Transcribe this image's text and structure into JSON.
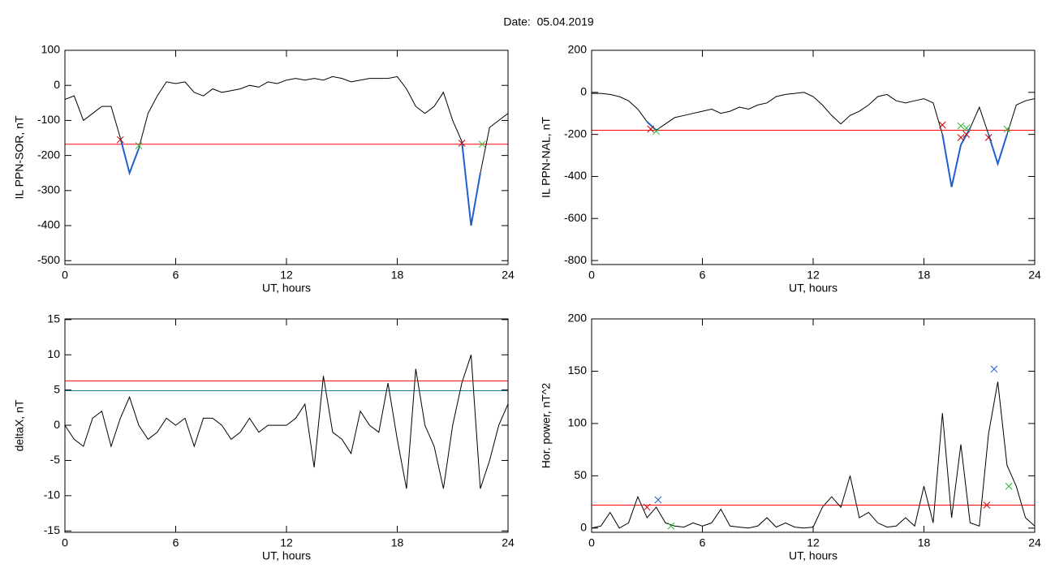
{
  "title": "Date:  05.04.2019",
  "chart_data": [
    {
      "type": "line",
      "ylabel": "IL PPN-SOR, nT",
      "xlabel": "UT, hours",
      "xlim": [
        0,
        24
      ],
      "xticks": [
        0,
        6,
        12,
        18,
        24
      ],
      "ylim": [
        -511,
        100
      ],
      "yticks": [
        100,
        0,
        -100,
        -200,
        -300,
        -400,
        -500
      ],
      "x": [
        0,
        0.5,
        1,
        1.5,
        2,
        2.5,
        3,
        3.5,
        4,
        4.5,
        5,
        5.5,
        6,
        6.5,
        7,
        7.5,
        8,
        8.5,
        9,
        9.5,
        10,
        10.5,
        11,
        11.5,
        12,
        12.5,
        13,
        13.5,
        14,
        14.5,
        15,
        15.5,
        16,
        16.5,
        17,
        17.5,
        18,
        18.5,
        19,
        19.5,
        20,
        20.5,
        21,
        21.5,
        22,
        22.5,
        23,
        23.5,
        24
      ],
      "series": [
        {
          "color": "#000000",
          "values": [
            -40,
            -30,
            -100,
            -80,
            -60,
            -60,
            -150,
            -250,
            -180,
            -80,
            -30,
            10,
            5,
            10,
            -20,
            -30,
            -10,
            -20,
            -15,
            -10,
            0,
            -5,
            10,
            5,
            15,
            20,
            15,
            20,
            15,
            25,
            20,
            10,
            15,
            20,
            20,
            20,
            25,
            -10,
            -60,
            -80,
            -60,
            -20,
            -100,
            -160,
            -400,
            -250,
            -120,
            -100,
            -80
          ]
        },
        {
          "color": "#1f5fd0",
          "values": [
            null,
            null,
            null,
            null,
            null,
            null,
            -150,
            -250,
            -180,
            null,
            null,
            null,
            null,
            null,
            null,
            null,
            null,
            null,
            null,
            null,
            null,
            null,
            null,
            null,
            null,
            null,
            null,
            null,
            null,
            null,
            null,
            null,
            null,
            null,
            null,
            null,
            null,
            null,
            null,
            null,
            null,
            null,
            null,
            -160,
            -400,
            -250,
            null,
            null,
            null
          ]
        }
      ],
      "hlines": [
        {
          "value": -168,
          "color": "#ff0000"
        }
      ],
      "markers": [
        {
          "x": 3.0,
          "y": -155,
          "color": "#cc0000"
        },
        {
          "x": 4.0,
          "y": -172,
          "color": "#2db82d"
        },
        {
          "x": 21.5,
          "y": -165,
          "color": "#cc0000"
        },
        {
          "x": 22.6,
          "y": -168,
          "color": "#2db82d"
        }
      ]
    },
    {
      "type": "line",
      "ylabel": "IL PPN-NAL, nT",
      "xlabel": "UT, hours",
      "xlim": [
        0,
        24
      ],
      "xticks": [
        0,
        6,
        12,
        18,
        24
      ],
      "ylim": [
        -819,
        200
      ],
      "yticks": [
        200,
        0,
        -200,
        -400,
        -600,
        -800
      ],
      "x": [
        0,
        0.5,
        1,
        1.5,
        2,
        2.5,
        3,
        3.5,
        4,
        4.5,
        5,
        5.5,
        6,
        6.5,
        7,
        7.5,
        8,
        8.5,
        9,
        9.5,
        10,
        10.5,
        11,
        11.5,
        12,
        12.5,
        13,
        13.5,
        14,
        14.5,
        15,
        15.5,
        16,
        16.5,
        17,
        17.5,
        18,
        18.5,
        19,
        19.5,
        20,
        20.5,
        21,
        21.5,
        22,
        22.5,
        23,
        23.5,
        24
      ],
      "series": [
        {
          "color": "#000000",
          "values": [
            -5,
            -5,
            -10,
            -20,
            -40,
            -80,
            -140,
            -180,
            -150,
            -120,
            -110,
            -100,
            -90,
            -80,
            -100,
            -90,
            -70,
            -80,
            -60,
            -50,
            -20,
            -10,
            -5,
            0,
            -20,
            -60,
            -110,
            -150,
            -110,
            -90,
            -60,
            -20,
            -10,
            -40,
            -50,
            -40,
            -30,
            -50,
            -200,
            -450,
            -250,
            -170,
            -70,
            -200,
            -340,
            -200,
            -60,
            -40,
            -30
          ]
        },
        {
          "color": "#1f5fd0",
          "values": [
            null,
            null,
            null,
            null,
            null,
            null,
            -140,
            -180,
            null,
            null,
            null,
            null,
            null,
            null,
            null,
            null,
            null,
            null,
            null,
            null,
            null,
            null,
            null,
            null,
            null,
            null,
            null,
            null,
            null,
            null,
            null,
            null,
            null,
            null,
            null,
            null,
            null,
            null,
            -200,
            -450,
            -250,
            -170,
            null,
            -200,
            -340,
            -200,
            null,
            null,
            null
          ]
        }
      ],
      "hlines": [
        {
          "value": -180,
          "color": "#ff0000"
        }
      ],
      "markers": [
        {
          "x": 3.2,
          "y": -175,
          "color": "#cc0000"
        },
        {
          "x": 3.5,
          "y": -185,
          "color": "#2db82d"
        },
        {
          "x": 19.0,
          "y": -155,
          "color": "#cc0000"
        },
        {
          "x": 20.0,
          "y": -160,
          "color": "#2db82d"
        },
        {
          "x": 20.0,
          "y": -215,
          "color": "#cc0000"
        },
        {
          "x": 20.3,
          "y": -170,
          "color": "#2db82d"
        },
        {
          "x": 20.3,
          "y": -200,
          "color": "#cc0000"
        },
        {
          "x": 21.5,
          "y": -215,
          "color": "#cc0000"
        },
        {
          "x": 22.5,
          "y": -175,
          "color": "#2db82d"
        }
      ]
    },
    {
      "type": "line",
      "ylabel": "deltaX, nT",
      "xlabel": "UT, hours",
      "xlim": [
        0,
        24
      ],
      "xticks": [
        0,
        6,
        12,
        18,
        24
      ],
      "ylim": [
        -15.2,
        15.1
      ],
      "yticks": [
        15,
        10,
        5,
        0,
        -5,
        -10,
        -15
      ],
      "x": [
        0,
        0.5,
        1,
        1.5,
        2,
        2.5,
        3,
        3.5,
        4,
        4.5,
        5,
        5.5,
        6,
        6.5,
        7,
        7.5,
        8,
        8.5,
        9,
        9.5,
        10,
        10.5,
        11,
        11.5,
        12,
        12.5,
        13,
        13.5,
        14,
        14.5,
        15,
        15.5,
        16,
        16.5,
        17,
        17.5,
        18,
        18.5,
        19,
        19.5,
        20,
        20.5,
        21,
        21.5,
        22,
        22.5,
        23,
        23.5,
        24
      ],
      "series": [
        {
          "color": "#000000",
          "values": [
            0,
            -2,
            -3,
            1,
            2,
            -3,
            1,
            4,
            0,
            -2,
            -1,
            1,
            0,
            1,
            -3,
            1,
            1,
            0,
            -2,
            -1,
            1,
            -1,
            0,
            0,
            0,
            1,
            3,
            -6,
            7,
            -1,
            -2,
            -4,
            2,
            0,
            -1,
            6,
            -2,
            -9,
            8,
            0,
            -3,
            -9,
            0,
            6,
            10,
            -9,
            -5,
            0,
            3
          ]
        }
      ],
      "hlines": [
        {
          "value": 6.3,
          "color": "#ff0000"
        },
        {
          "value": 4.9,
          "color": "#1f7fa0"
        }
      ],
      "markers": []
    },
    {
      "type": "line",
      "ylabel": "Hor. power, nT^2",
      "xlabel": "UT, hours",
      "xlim": [
        0,
        24
      ],
      "xticks": [
        0,
        6,
        12,
        18,
        24
      ],
      "ylim": [
        -4,
        200
      ],
      "yticks": [
        200,
        150,
        100,
        50,
        0
      ],
      "x": [
        0,
        0.5,
        1,
        1.5,
        2,
        2.5,
        3,
        3.5,
        4,
        4.5,
        5,
        5.5,
        6,
        6.5,
        7,
        7.5,
        8,
        8.5,
        9,
        9.5,
        10,
        10.5,
        11,
        11.5,
        12,
        12.5,
        13,
        13.5,
        14,
        14.5,
        15,
        15.5,
        16,
        16.5,
        17,
        17.5,
        18,
        18.5,
        19,
        19.5,
        20,
        20.5,
        21,
        21.5,
        22,
        22.5,
        23,
        23.5,
        24
      ],
      "series": [
        {
          "color": "#000000",
          "values": [
            0,
            2,
            15,
            0,
            5,
            30,
            10,
            20,
            5,
            2,
            1,
            5,
            2,
            5,
            18,
            2,
            1,
            0,
            2,
            10,
            1,
            5,
            1,
            0,
            1,
            20,
            30,
            20,
            50,
            10,
            15,
            5,
            1,
            2,
            10,
            2,
            40,
            5,
            110,
            10,
            80,
            5,
            2,
            90,
            140,
            60,
            40,
            10,
            2
          ]
        }
      ],
      "hlines": [
        {
          "value": 22,
          "color": "#ff0000"
        }
      ],
      "markers": [
        {
          "x": 3.0,
          "y": 20,
          "color": "#cc0000"
        },
        {
          "x": 3.6,
          "y": 27,
          "color": "#1f5fd0"
        },
        {
          "x": 4.3,
          "y": 2,
          "color": "#2db82d"
        },
        {
          "x": 21.4,
          "y": 22,
          "color": "#cc0000"
        },
        {
          "x": 21.8,
          "y": 152,
          "color": "#1f5fd0"
        },
        {
          "x": 22.6,
          "y": 40,
          "color": "#2db82d"
        }
      ]
    }
  ]
}
